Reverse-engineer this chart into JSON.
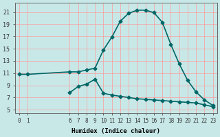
{
  "xlabel": "Humidex (Indice chaleur)",
  "bg_color": "#c8e8e8",
  "grid_color": "#ff9999",
  "line_color": "#006666",
  "upper_x": [
    0,
    1,
    6,
    7,
    8,
    9,
    10,
    11,
    12,
    13,
    14,
    15,
    16,
    17,
    18,
    19,
    20,
    21,
    22,
    23
  ],
  "upper_y": [
    10.8,
    10.8,
    11.2,
    11.2,
    11.5,
    11.8,
    14.8,
    16.9,
    19.5,
    20.8,
    21.3,
    21.3,
    20.9,
    19.3,
    15.7,
    12.5,
    9.8,
    7.9,
    6.6,
    5.7
  ],
  "lower_x": [
    6,
    7,
    8,
    9,
    10,
    11,
    12,
    13,
    14,
    15,
    16,
    17,
    18,
    19,
    20,
    21,
    22,
    23
  ],
  "lower_y": [
    7.8,
    8.8,
    9.2,
    10.0,
    7.7,
    7.4,
    7.2,
    7.0,
    6.8,
    6.7,
    6.6,
    6.5,
    6.4,
    6.3,
    6.2,
    6.1,
    5.8,
    5.5
  ],
  "xticks": [
    0,
    1,
    6,
    7,
    8,
    9,
    10,
    11,
    12,
    13,
    14,
    15,
    16,
    17,
    18,
    19,
    20,
    21,
    22,
    23
  ],
  "yticks": [
    5,
    7,
    9,
    11,
    13,
    15,
    17,
    19,
    21
  ],
  "xlim": [
    -0.5,
    23.5
  ],
  "ylim": [
    4.5,
    22.5
  ]
}
